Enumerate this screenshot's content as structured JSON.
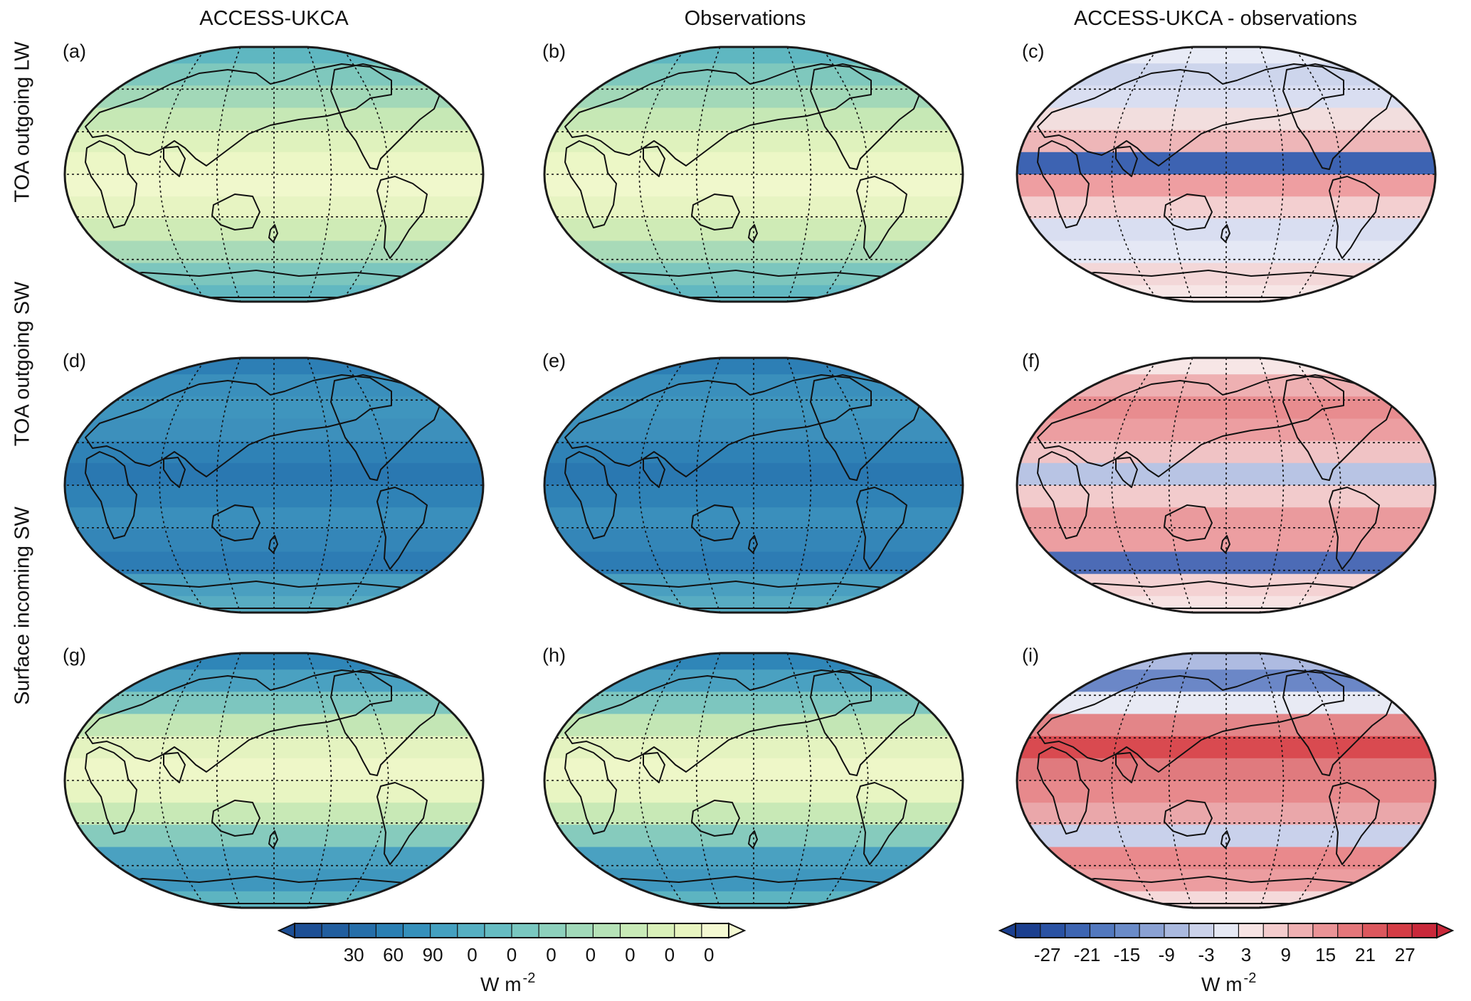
{
  "columns": [
    {
      "title": "ACCESS-UKCA"
    },
    {
      "title": "Observations"
    },
    {
      "title": "ACCESS-UKCA - observations"
    }
  ],
  "rows": [
    {
      "label": "TOA outgoing LW"
    },
    {
      "label": "TOA outgoing SW"
    },
    {
      "label": "Surface incoming SW"
    }
  ],
  "panels": [
    {
      "letter": "(a)",
      "scheme": "lw"
    },
    {
      "letter": "(b)",
      "scheme": "lw"
    },
    {
      "letter": "(c)",
      "scheme": "diff_lw"
    },
    {
      "letter": "(d)",
      "scheme": "sw"
    },
    {
      "letter": "(e)",
      "scheme": "sw"
    },
    {
      "letter": "(f)",
      "scheme": "diff_sw"
    },
    {
      "letter": "(g)",
      "scheme": "sfc"
    },
    {
      "letter": "(h)",
      "scheme": "sfc"
    },
    {
      "letter": "(i)",
      "scheme": "diff_sfc"
    }
  ],
  "colorbars": {
    "absolute": {
      "ticks": [
        "30",
        "60",
        "90",
        "0",
        "0",
        "0",
        "0",
        "0",
        "0",
        "0"
      ],
      "unit_base": "W m",
      "unit_exp": "-2",
      "colors": [
        "#1d4f95",
        "#215e9f",
        "#256ea9",
        "#2a7fb3",
        "#3590bb",
        "#44a0c0",
        "#55afc2",
        "#66bcc2",
        "#79c7c0",
        "#8dd0bc",
        "#a1d9b9",
        "#b5e2b7",
        "#c8eab7",
        "#d9f0b9",
        "#e8f5c0",
        "#f4f9d2"
      ]
    },
    "difference": {
      "ticks": [
        "-27",
        "-21",
        "-15",
        "-9",
        "-3",
        "3",
        "9",
        "15",
        "21",
        "27"
      ],
      "unit_base": "W m",
      "unit_exp": "-2",
      "colors": [
        "#1b3f8f",
        "#2a52a3",
        "#3d65b2",
        "#5278be",
        "#6a8bc8",
        "#8aa1d3",
        "#aab9df",
        "#cbd2ea",
        "#e6e9f4",
        "#f7e4e4",
        "#f4cccd",
        "#efb0b2",
        "#ea9396",
        "#e4767a",
        "#dc575d",
        "#d43c45",
        "#c9283a"
      ]
    }
  },
  "colors": {
    "frame": "#1a1a1a",
    "land_outline": "#111111"
  }
}
